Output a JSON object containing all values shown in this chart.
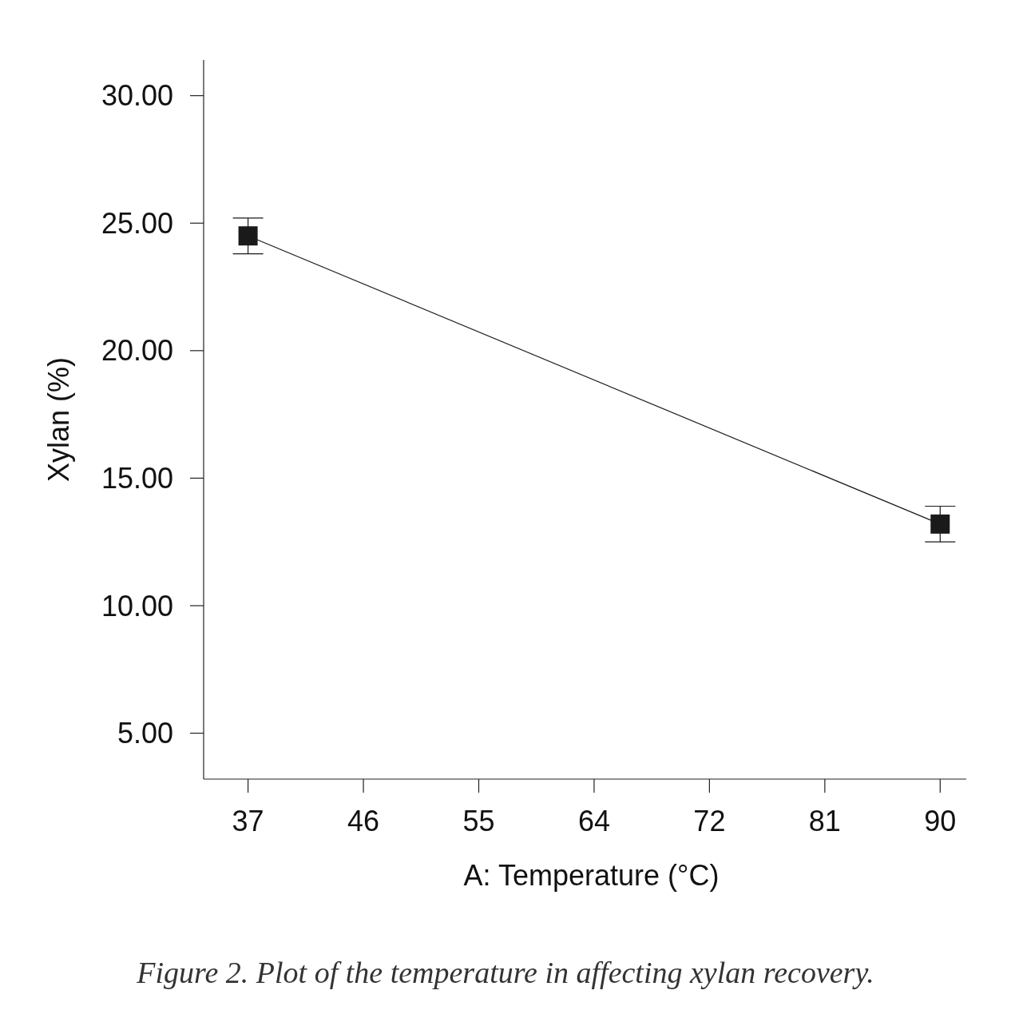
{
  "chart_data": {
    "type": "line",
    "xlabel": "A: Temperature (°C)",
    "ylabel": "Xylan (%)",
    "annotations": [
      "Figure 2. Plot of the temperature in affecting xylan recovery."
    ],
    "x": [
      37,
      90
    ],
    "series": [
      {
        "color": "#1a1a1a",
        "values": [
          24.5,
          13.2
        ],
        "errors": [
          0.7,
          0.7
        ]
      }
    ],
    "marker": "square",
    "line_style": "solid",
    "grid": false,
    "xlim": [
      33.6,
      92
    ],
    "ylim": [
      3.2,
      31.4
    ],
    "xticks": [
      37,
      {
        "value": 45.833,
        "label": "46"
      },
      {
        "value": 54.667,
        "label": "55"
      },
      {
        "value": 63.5,
        "label": "64"
      },
      {
        "value": 72.333,
        "label": "72"
      },
      {
        "value": 81.167,
        "label": "81"
      },
      90
    ],
    "yticks": [
      {
        "value": 5,
        "label": "5.00"
      },
      {
        "value": 10,
        "label": "10.00"
      },
      {
        "value": 15,
        "label": "15.00"
      },
      {
        "value": 20,
        "label": "20.00"
      },
      {
        "value": 25,
        "label": "25.00"
      },
      {
        "value": 30,
        "label": "30.00"
      }
    ]
  }
}
